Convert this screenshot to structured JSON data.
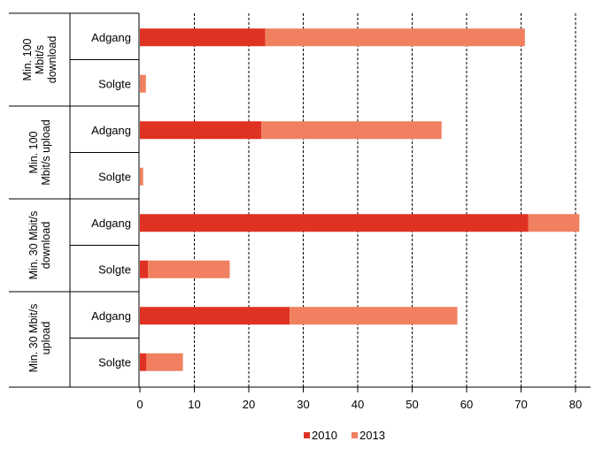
{
  "chart_data": {
    "type": "bar",
    "orientation": "horizontal",
    "stacked": true,
    "groups": [
      {
        "label_lines": [
          "Min. 100",
          "Mbit/s",
          "download"
        ],
        "rows": [
          "Adgang",
          "Solgte"
        ]
      },
      {
        "label_lines": [
          "Min. 100",
          "Mbit/s upload"
        ],
        "rows": [
          "Adgang",
          "Solgte"
        ]
      },
      {
        "label_lines": [
          "Min. 30 Mbit/s",
          "download"
        ],
        "rows": [
          "Adgang",
          "Solgte"
        ]
      },
      {
        "label_lines": [
          "Min. 30 Mbit/s",
          "upload"
        ],
        "rows": [
          "Adgang",
          "Solgte"
        ]
      }
    ],
    "series": [
      {
        "name": "2010",
        "color": "#e03222",
        "values": [
          23,
          0,
          22.3,
          0,
          71.3,
          1.5,
          27.5,
          1.2
        ]
      },
      {
        "name": "2013",
        "color": "#f08060",
        "values": [
          47.7,
          1.1,
          33.1,
          0.6,
          9.4,
          15.0,
          30.8,
          6.7
        ]
      }
    ],
    "xticks": [
      0,
      10,
      20,
      30,
      40,
      50,
      60,
      70,
      80
    ],
    "xlim": [
      0,
      82
    ],
    "grid": "vertical-dashed",
    "legend_position": "bottom"
  }
}
